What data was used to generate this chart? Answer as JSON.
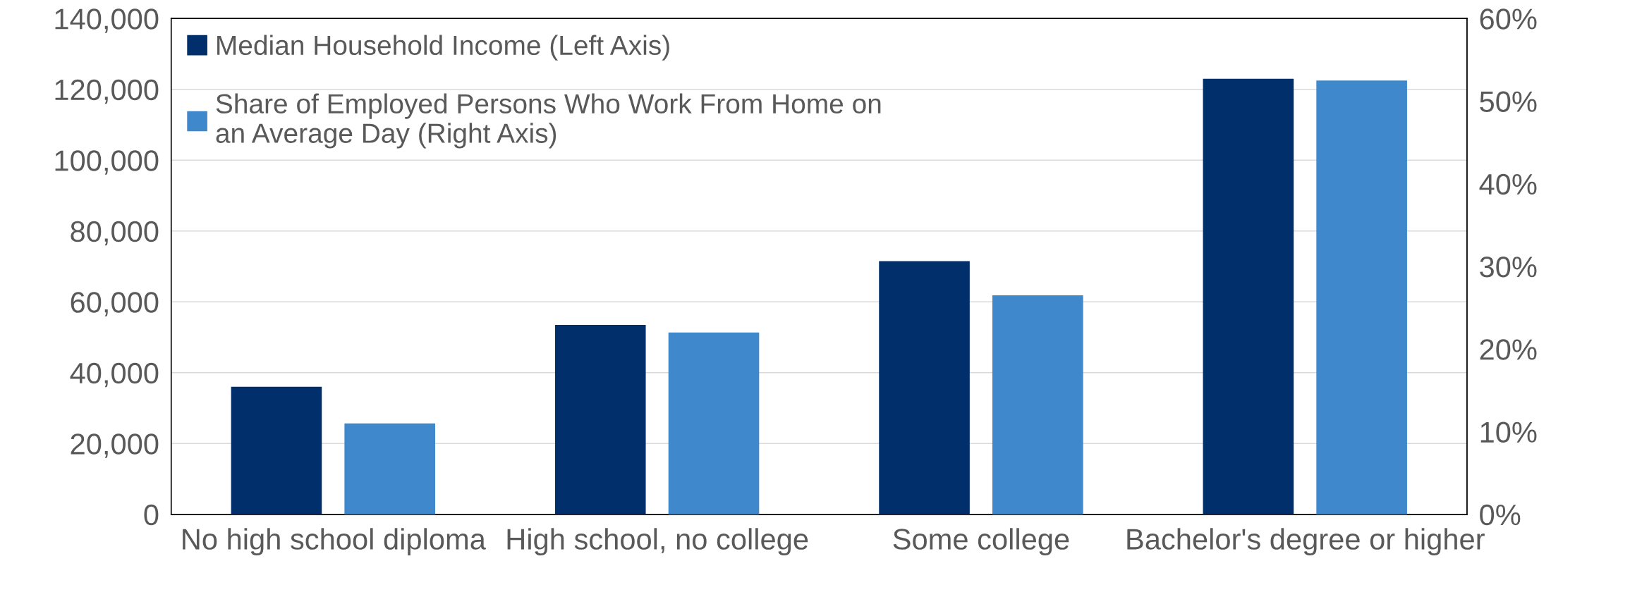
{
  "chart_data": {
    "type": "bar",
    "categories": [
      "No high school diploma",
      "High school, no college",
      "Some college",
      "Bachelor's degree or higher"
    ],
    "series": [
      {
        "name": "Median Household Income (Left Axis)",
        "color": "#002f6c",
        "values": [
          36000,
          53500,
          71500,
          123000
        ]
      },
      {
        "name": "Share of Employed Persons Who Work From Home on an Average Day (Right Axis)",
        "color": "#3f88cc",
        "values": [
          11,
          22,
          26.5,
          52.5
        ],
        "axis": "y2"
      }
    ],
    "ylim": [
      0,
      140000
    ],
    "yticks": [
      {
        "value": 0,
        "label": "0"
      },
      {
        "value": 20000,
        "label": "20,000"
      },
      {
        "value": 40000,
        "label": "40,000"
      },
      {
        "value": 60000,
        "label": "60,000"
      },
      {
        "value": 80000,
        "label": "80,000"
      },
      {
        "value": 100000,
        "label": "100,000"
      },
      {
        "value": 120000,
        "label": "120,000"
      },
      {
        "value": 140000,
        "label": "140,000"
      }
    ],
    "y2lim": [
      0,
      60
    ],
    "y2ticks": [
      {
        "value": 0,
        "label": "0%"
      },
      {
        "value": 10,
        "label": "10%"
      },
      {
        "value": 20,
        "label": "20%"
      },
      {
        "value": 30,
        "label": "30%"
      },
      {
        "value": 40,
        "label": "40%"
      },
      {
        "value": 50,
        "label": "50%"
      },
      {
        "value": 60,
        "label": "60%"
      }
    ],
    "grid": "y",
    "legend": "top left"
  }
}
